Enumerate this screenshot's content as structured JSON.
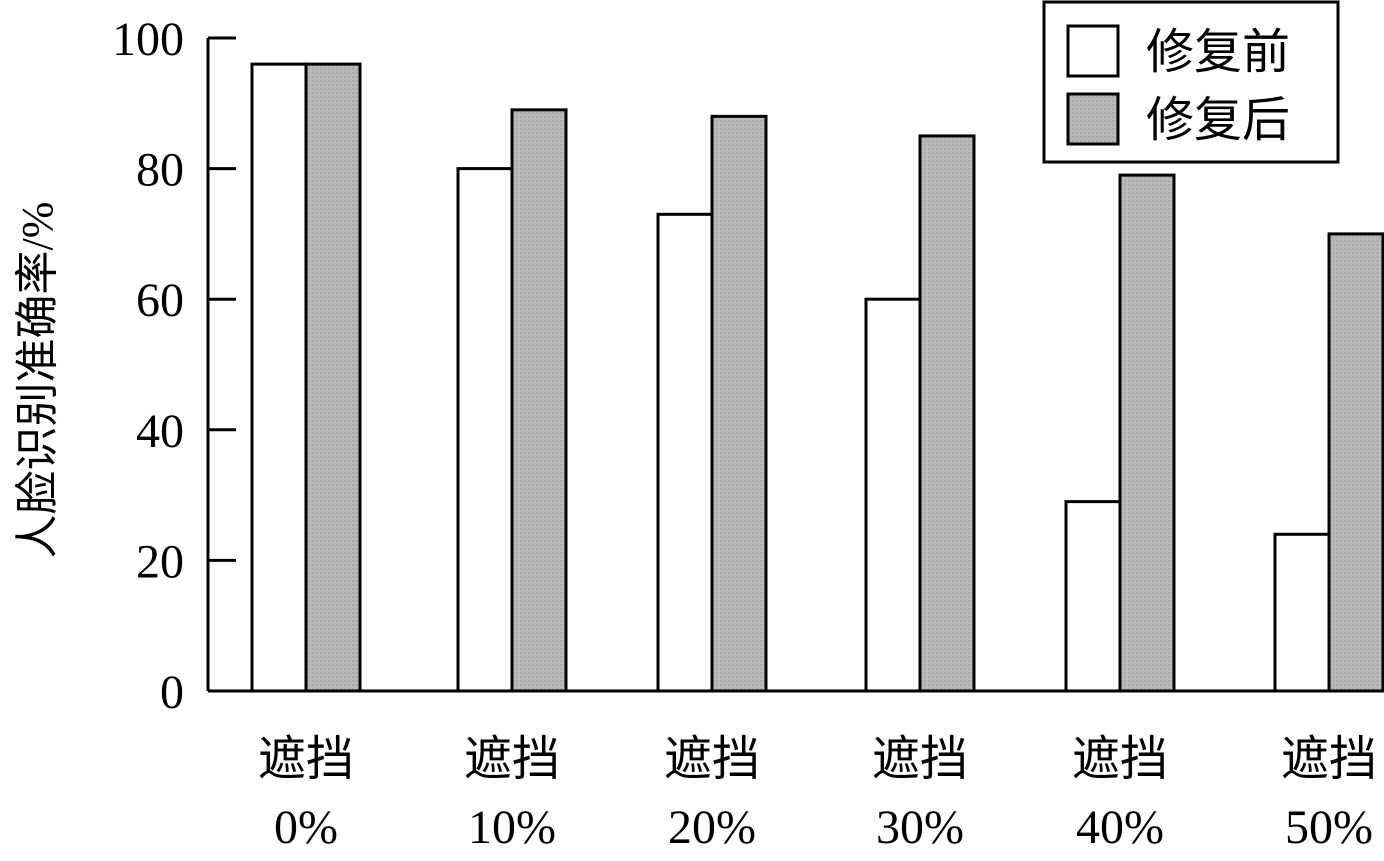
{
  "chart_data": {
    "type": "bar",
    "categories": [
      [
        "遮挡",
        "0%"
      ],
      [
        "遮挡",
        "10%"
      ],
      [
        "遮挡",
        "20%"
      ],
      [
        "遮挡",
        "30%"
      ],
      [
        "遮挡",
        "40%"
      ],
      [
        "遮挡",
        "50%"
      ]
    ],
    "series": [
      {
        "name": "修复前",
        "color": "#ffffff",
        "values": [
          96,
          80,
          73,
          60,
          29,
          24
        ]
      },
      {
        "name": "修复后",
        "color": "#b3b3b3",
        "values": [
          96,
          89,
          88,
          85,
          79,
          70
        ]
      }
    ],
    "ylabel": "人脸识别准确率/%",
    "ylim": [
      0,
      100
    ],
    "yticks": [
      0,
      20,
      40,
      60,
      80,
      100
    ],
    "grid": false,
    "legend_position": "top-right"
  }
}
